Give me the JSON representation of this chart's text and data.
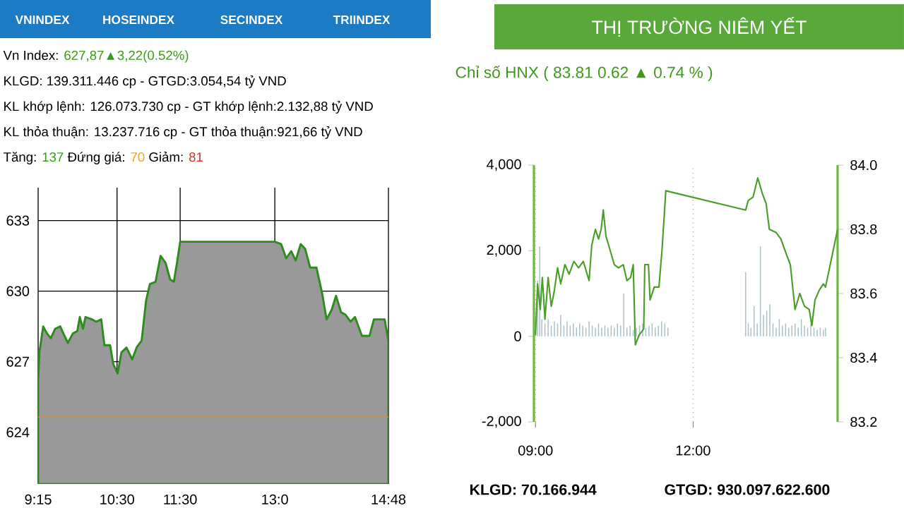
{
  "chart_data": [
    {
      "type": "area",
      "annotations": [
        "VNINDEX",
        "HOSEINDEX",
        "SECINDEX",
        "TRIINDEX",
        "Vn Index: ",
        "627,87▲3,22(0.52%)",
        "KLGD: 139.311.446 cp - GTGD:3.054,54 tỷ VND",
        "KL khớp lệnh: 126.073.730 cp - GT khớp lệnh:2.132,88 tỷ VND",
        "KL thỏa thuận: 13.237.716 cp - GT thỏa thuận:921,66 tỷ VND",
        "Tăng: ",
        "137",
        " Đứng giá: ",
        "70",
        " Giảm: ",
        "81"
      ],
      "x": [
        9.25,
        9.27,
        9.33,
        9.39,
        9.45,
        9.52,
        9.6,
        9.65,
        9.72,
        9.8,
        9.87,
        9.91,
        9.96,
        10.0,
        10.1,
        10.17,
        10.25,
        10.3,
        10.39,
        10.44,
        10.51,
        10.57,
        10.65,
        10.74,
        10.81,
        10.89,
        10.96,
        11.02,
        11.11,
        11.19,
        11.27,
        11.34,
        11.4,
        11.45,
        11.5,
        13.0,
        13.1,
        13.18,
        13.26,
        13.33,
        13.41,
        13.48,
        13.56,
        13.66,
        13.75,
        13.82,
        13.9,
        13.97,
        14.05,
        14.12,
        14.2,
        14.27,
        14.38,
        14.5,
        14.57,
        14.74,
        14.8
      ],
      "series": [
        {
          "color": "#999999",
          "values": [
            626.2,
            627.4,
            628.5,
            628.2,
            628.0,
            628.4,
            628.5,
            628.2,
            627.8,
            628.2,
            628.3,
            628.9,
            628.4,
            628.9,
            628.8,
            628.7,
            628.8,
            627.7,
            627.7,
            626.9,
            626.5,
            627.4,
            627.6,
            627.1,
            627.6,
            627.9,
            629.6,
            630.3,
            630.4,
            631.5,
            631.2,
            630.5,
            630.4,
            631.2,
            632.1,
            632.1,
            632.0,
            631.4,
            631.7,
            631.3,
            632.0,
            631.8,
            631.0,
            631.0,
            629.9,
            628.8,
            629.2,
            629.8,
            629.1,
            629.0,
            628.7,
            628.9,
            628.1,
            628.1,
            628.8,
            628.8,
            627.9
          ]
        }
      ],
      "xlim": [
        9.25,
        14.8
      ],
      "ylim": [
        621.8,
        634.4
      ],
      "xticks": [
        {
          "value": 9.25,
          "label": "9:15"
        },
        {
          "value": 10.5,
          "label": "10:30"
        },
        {
          "value": 11.5,
          "label": "11:30"
        },
        {
          "value": 13.0,
          "label": "13:0"
        },
        {
          "value": 14.8,
          "label": "14:48"
        }
      ],
      "yticks": [
        624,
        627,
        630,
        633
      ],
      "grid": true,
      "ref_lines": [
        {
          "axis": "y",
          "value": 624.65,
          "color": "#c8924a"
        }
      ]
    },
    {
      "type": "line",
      "title": "THỊ TRƯỜNG NIÊM YẾT",
      "subtitle": "Chỉ số HNX ( 83.81   0.62 ▲  0.74 % )",
      "annotations": [
        "KLGD:   70.166.944",
        "GTGD:   930.097.622.600"
      ],
      "xlim": [
        8.97,
        14.75
      ],
      "ylim": [
        -2000,
        4000
      ],
      "y2lim": [
        83.2,
        84.0
      ],
      "xticks": [
        {
          "value": 9,
          "label": "09:00"
        },
        {
          "value": 12,
          "label": "12:00"
        }
      ],
      "yticks": [
        {
          "value": -2000,
          "label": "-2,000"
        },
        0,
        {
          "value": 2000,
          "label": "2,000"
        },
        {
          "value": 4000,
          "label": "4,000"
        }
      ],
      "y2ticks": [
        {
          "value": 83.2,
          "label": "83.2"
        },
        {
          "value": 83.4,
          "label": "83.4"
        },
        {
          "value": 83.6,
          "label": "83.6"
        },
        {
          "value": 83.8,
          "label": "83.8"
        },
        {
          "value": 84.0,
          "label": "84.0"
        }
      ],
      "grid": "x",
      "series": [
        {
          "type": "bar",
          "axis": "y",
          "color": "#a8bfc7",
          "x": [
            9.04,
            9.08,
            9.12,
            9.18,
            9.24,
            9.3,
            9.36,
            9.42,
            9.48,
            9.54,
            9.6,
            9.66,
            9.72,
            9.78,
            9.84,
            9.9,
            9.96,
            10.02,
            10.08,
            10.14,
            10.2,
            10.26,
            10.32,
            10.38,
            10.44,
            10.5,
            10.56,
            10.62,
            10.68,
            10.74,
            10.8,
            10.86,
            10.92,
            10.98,
            11.04,
            11.1,
            11.16,
            11.22,
            11.28,
            11.34,
            11.4,
            11.46,
            11.52,
            13.0,
            13.05,
            13.1,
            13.16,
            13.22,
            13.28,
            13.34,
            13.4,
            13.46,
            13.52,
            13.58,
            13.64,
            13.7,
            13.76,
            13.82,
            13.88,
            13.94,
            14.0,
            14.06,
            14.12,
            14.18,
            14.24,
            14.3,
            14.36,
            14.42,
            14.48,
            14.52
          ],
          "values": [
            1300,
            2100,
            400,
            300,
            400,
            250,
            350,
            300,
            500,
            250,
            350,
            250,
            300,
            200,
            300,
            250,
            200,
            350,
            250,
            200,
            300,
            200,
            250,
            200,
            250,
            200,
            300,
            250,
            1000,
            200,
            250,
            150,
            200,
            250,
            300,
            200,
            250,
            300,
            200,
            250,
            350,
            300,
            200,
            1500,
            300,
            200,
            700,
            300,
            2100,
            500,
            600,
            750,
            300,
            200,
            400,
            250,
            300,
            200,
            250,
            300,
            200,
            400,
            250,
            200,
            300,
            200,
            150,
            200,
            150,
            200
          ]
        },
        {
          "type": "line",
          "axis": "y2",
          "color": "#4a9e28",
          "x": [
            9.0,
            9.04,
            9.09,
            9.13,
            9.18,
            9.24,
            9.3,
            9.36,
            9.42,
            9.48,
            9.56,
            9.64,
            9.73,
            9.82,
            9.91,
            10.02,
            10.07,
            10.14,
            10.2,
            10.25,
            10.29,
            10.34,
            10.41,
            10.5,
            10.58,
            10.67,
            10.74,
            10.81,
            10.86,
            10.9,
            10.97,
            11.06,
            11.08,
            11.15,
            11.18,
            11.26,
            11.35,
            11.41,
            11.48,
            13.0,
            13.05,
            13.14,
            13.23,
            13.32,
            13.39,
            13.45,
            13.58,
            13.67,
            13.78,
            13.85,
            13.94,
            14.03,
            14.12,
            14.21,
            14.26,
            14.32,
            14.4,
            14.48,
            14.52,
            14.75
          ],
          "values": [
            83.47,
            83.63,
            83.55,
            83.65,
            83.52,
            83.65,
            83.56,
            83.61,
            83.68,
            83.63,
            83.69,
            83.66,
            83.7,
            83.68,
            83.7,
            83.64,
            83.75,
            83.8,
            83.77,
            83.8,
            83.86,
            83.78,
            83.74,
            83.69,
            83.68,
            83.69,
            83.64,
            83.65,
            83.69,
            83.44,
            83.47,
            83.49,
            83.69,
            83.69,
            83.58,
            83.62,
            83.62,
            83.74,
            83.92,
            83.86,
            83.89,
            83.9,
            83.96,
            83.91,
            83.88,
            83.8,
            83.79,
            83.77,
            83.72,
            83.69,
            83.55,
            83.6,
            83.56,
            83.55,
            83.5,
            83.58,
            83.61,
            83.63,
            83.62,
            83.8
          ]
        }
      ]
    }
  ]
}
